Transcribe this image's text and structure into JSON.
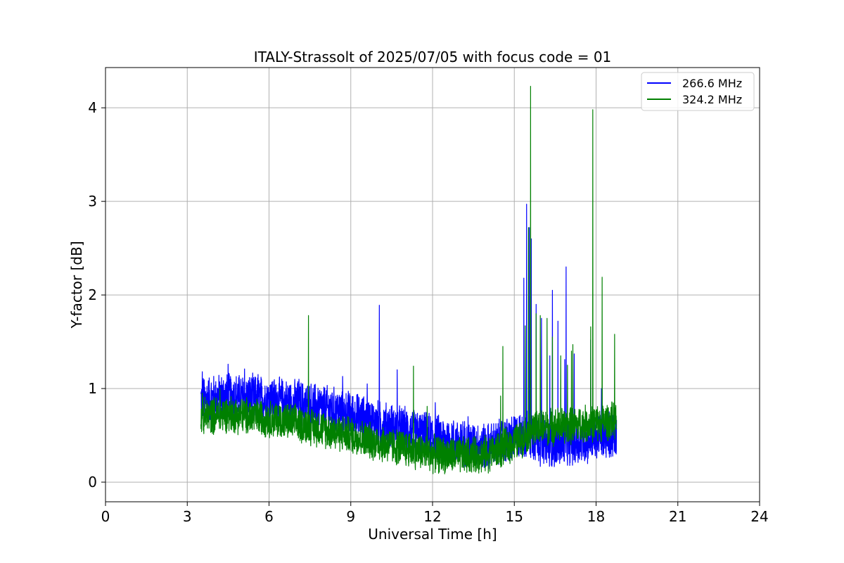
{
  "chart_data": {
    "type": "line",
    "title": "ITALY-Strassolt of 2025/07/05 with focus code = 01",
    "xlabel": "Universal Time [h]",
    "ylabel": "Y-factor [dB]",
    "xlim": [
      0,
      24
    ],
    "ylim": [
      -0.21,
      4.43
    ],
    "xticks": [
      0,
      3,
      6,
      9,
      12,
      15,
      18,
      21,
      24
    ],
    "xtick_labels": [
      "0",
      "3",
      "6",
      "9",
      "12",
      "15",
      "18",
      "21",
      "24"
    ],
    "yticks": [
      0,
      1,
      2,
      3,
      4
    ],
    "ytick_labels": [
      "0",
      "1",
      "2",
      "3",
      "4"
    ],
    "grid": true,
    "legend_position": "top-right",
    "series": [
      {
        "name": "266.6 MHz",
        "color": "#0000ff",
        "x_range": [
          3.5,
          18.75
        ],
        "baseline": [
          [
            3.5,
            0.88
          ],
          [
            4.5,
            0.92
          ],
          [
            6,
            0.88
          ],
          [
            7.5,
            0.82
          ],
          [
            9,
            0.72
          ],
          [
            10,
            0.62
          ],
          [
            11,
            0.55
          ],
          [
            12,
            0.48
          ],
          [
            13,
            0.42
          ],
          [
            14,
            0.38
          ],
          [
            14.5,
            0.42
          ],
          [
            15.2,
            0.5
          ],
          [
            15.6,
            0.5
          ],
          [
            16,
            0.42
          ],
          [
            16.5,
            0.4
          ],
          [
            17,
            0.42
          ],
          [
            17.5,
            0.44
          ],
          [
            18,
            0.47
          ],
          [
            18.75,
            0.52
          ]
        ],
        "noise": 0.28,
        "spikes": [
          [
            3.55,
            1.18
          ],
          [
            4.5,
            1.26
          ],
          [
            5.1,
            1.21
          ],
          [
            5.6,
            1.15
          ],
          [
            7.1,
            1.1
          ],
          [
            8.7,
            1.13
          ],
          [
            9.6,
            1.05
          ],
          [
            10.05,
            1.89
          ],
          [
            10.7,
            1.2
          ],
          [
            12.1,
            0.85
          ],
          [
            13.3,
            0.7
          ],
          [
            15.35,
            2.18
          ],
          [
            15.45,
            2.97
          ],
          [
            15.55,
            2.72
          ],
          [
            15.62,
            2.6
          ],
          [
            15.8,
            1.9
          ],
          [
            16.0,
            1.75
          ],
          [
            16.3,
            1.35
          ],
          [
            16.4,
            2.05
          ],
          [
            16.6,
            1.72
          ],
          [
            16.85,
            1.31
          ],
          [
            16.9,
            2.3
          ],
          [
            17.2,
            1.37
          ],
          [
            17.8,
            1.52
          ],
          [
            18.2,
            1.0
          ]
        ]
      },
      {
        "name": "324.2 MHz",
        "color": "#008000",
        "x_range": [
          3.5,
          18.75
        ],
        "baseline": [
          [
            3.5,
            0.7
          ],
          [
            4.5,
            0.73
          ],
          [
            6,
            0.68
          ],
          [
            7.5,
            0.6
          ],
          [
            9,
            0.5
          ],
          [
            10,
            0.42
          ],
          [
            11,
            0.36
          ],
          [
            12,
            0.3
          ],
          [
            13,
            0.28
          ],
          [
            14,
            0.3
          ],
          [
            14.5,
            0.35
          ],
          [
            15.2,
            0.45
          ],
          [
            15.6,
            0.55
          ],
          [
            16,
            0.58
          ],
          [
            16.5,
            0.6
          ],
          [
            17,
            0.6
          ],
          [
            17.5,
            0.62
          ],
          [
            18,
            0.63
          ],
          [
            18.75,
            0.66
          ]
        ],
        "noise": 0.22,
        "spikes": [
          [
            3.55,
            0.95
          ],
          [
            4.2,
            1.0
          ],
          [
            7.45,
            1.78
          ],
          [
            11.3,
            1.24
          ],
          [
            11.8,
            0.81
          ],
          [
            14.5,
            0.92
          ],
          [
            14.58,
            1.45
          ],
          [
            15.4,
            1.67
          ],
          [
            15.6,
            4.23
          ],
          [
            15.52,
            2.72
          ],
          [
            15.8,
            1.8
          ],
          [
            15.95,
            1.78
          ],
          [
            16.2,
            1.75
          ],
          [
            16.4,
            1.55
          ],
          [
            16.7,
            1.35
          ],
          [
            16.95,
            1.25
          ],
          [
            17.1,
            1.4
          ],
          [
            17.15,
            1.47
          ],
          [
            17.8,
            1.66
          ],
          [
            17.88,
            3.98
          ],
          [
            18.22,
            2.19
          ],
          [
            18.68,
            1.58
          ]
        ]
      }
    ]
  }
}
